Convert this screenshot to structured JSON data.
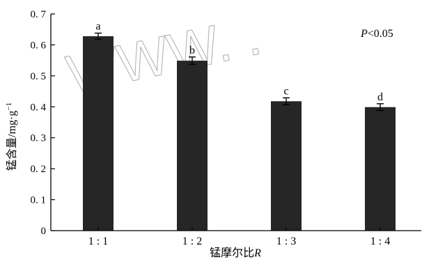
{
  "chart_data": {
    "type": "bar",
    "categories": [
      "1 : 1",
      "1 : 2",
      "1 : 3",
      "1 : 4"
    ],
    "values": [
      0.628,
      0.549,
      0.418,
      0.399
    ],
    "errors": [
      0.01,
      0.012,
      0.011,
      0.011
    ],
    "significance_letters": [
      "a",
      "b",
      "c",
      "d"
    ],
    "annotation": {
      "italic": "P",
      "rest": "<0.05"
    },
    "title": "",
    "ylabel": {
      "text": "锰含量/mg·g",
      "superscript": "−1"
    },
    "xlabel": {
      "text": "锰摩尔比",
      "italic": "R"
    },
    "ylim": [
      0,
      0.7
    ],
    "yticks": [
      0,
      0.1,
      0.2,
      0.3,
      0.4,
      0.5,
      0.6,
      0.7
    ],
    "ytick_labels": [
      "0",
      "0. 1",
      "0. 2",
      "0. 3",
      "0. 4",
      "0. 5",
      "0. 6",
      "0. 7"
    ],
    "bar_color": "#262626",
    "grid": false,
    "watermark": "WWW. ."
  }
}
